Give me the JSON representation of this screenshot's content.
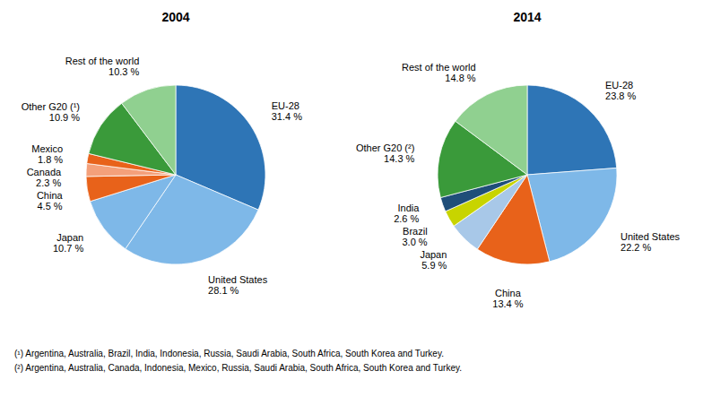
{
  "chart_data": [
    {
      "type": "pie",
      "title": "2004",
      "categories": [
        "EU-28",
        "United States",
        "Japan",
        "China",
        "Canada",
        "Mexico",
        "Other G20 (¹)",
        "Rest of the world"
      ],
      "values": [
        31.4,
        28.1,
        10.7,
        4.5,
        2.3,
        1.8,
        10.9,
        10.3
      ],
      "value_labels": [
        "31.4 %",
        "28.1 %",
        "10.7 %",
        "4.5 %",
        "2.3 %",
        "1.8 %",
        "10.9 %",
        "10.3 %"
      ],
      "colors": [
        "#2E75B6",
        "#7EB8E8",
        "#7EB8E8",
        "#E8621A",
        "#F4A07A",
        "#E8621A",
        "#3A9A3A",
        "#90D090"
      ],
      "annotations": [
        "(¹) Argentina, Australia, Brazil, India, Indonesia, Russia, Saudi Arabia, South Africa, South Korea and Turkey."
      ]
    },
    {
      "type": "pie",
      "title": "2014",
      "categories": [
        "EU-28",
        "United States",
        "China",
        "Japan",
        "Brazil",
        "India",
        "Other G20 (²)",
        "Rest of the world"
      ],
      "values": [
        23.8,
        22.2,
        13.4,
        5.9,
        3.0,
        2.6,
        14.3,
        14.8
      ],
      "value_labels": [
        "23.8 %",
        "22.2 %",
        "13.4 %",
        "5.9 %",
        "3.0 %",
        "2.6 %",
        "14.3 %",
        "14.8 %"
      ],
      "colors": [
        "#2E75B6",
        "#7EB8E8",
        "#E8621A",
        "#A8C8E8",
        "#C8D400",
        "#1F4E79",
        "#3A9A3A",
        "#90D090"
      ],
      "annotations": [
        "(²) Argentina, Australia, Canada, Indonesia, Mexico, Russia, Saudi Arabia, South Africa, South Korea and Turkey."
      ]
    }
  ]
}
